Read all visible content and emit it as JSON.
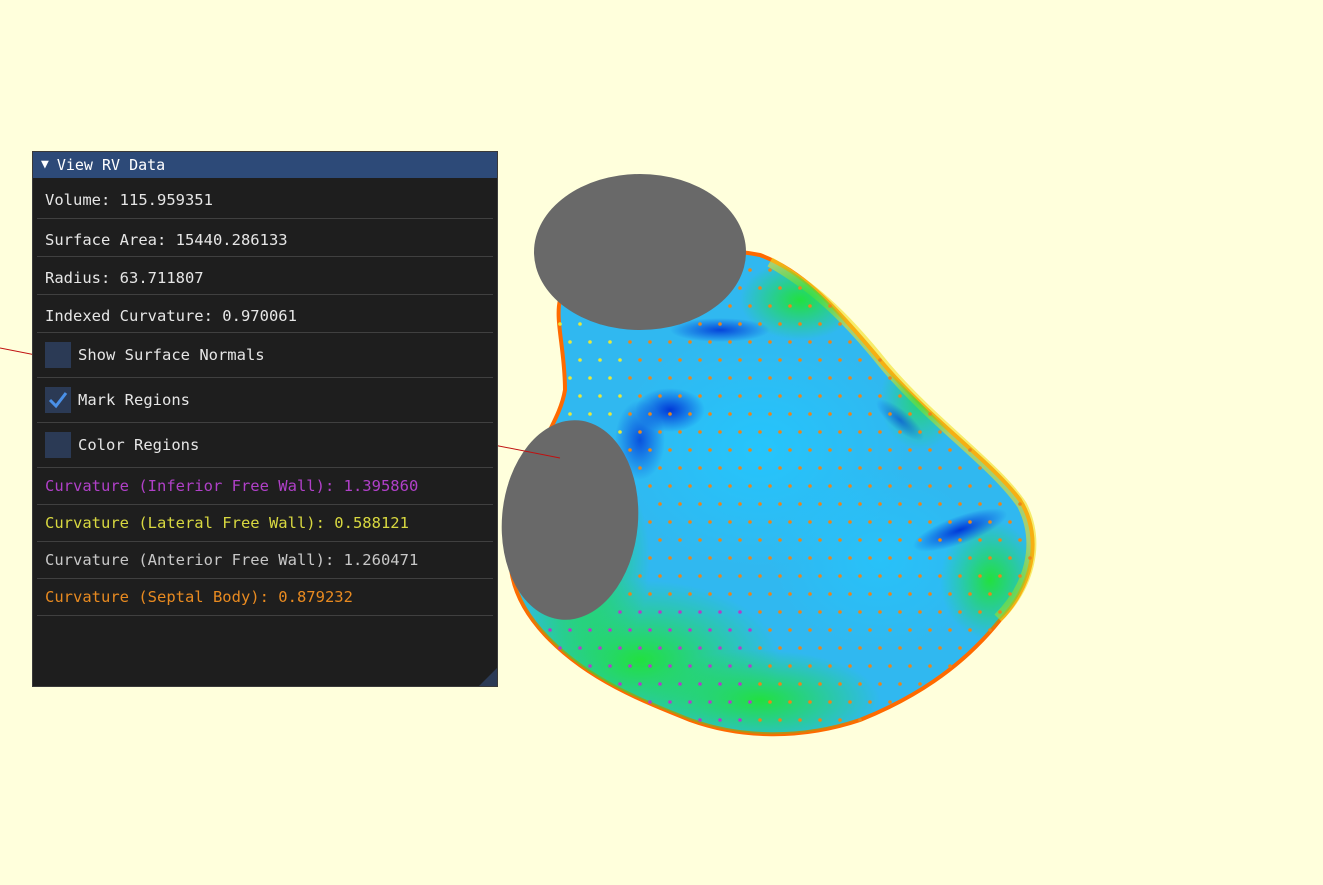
{
  "window": {
    "title": "View RV Data",
    "collapse_icon": "triangle-down-icon"
  },
  "stats": {
    "volume": "Volume: 115.959351",
    "surface_area": "Surface Area: 15440.286133",
    "radius": "Radius: 63.711807",
    "indexed_curvature": "Indexed Curvature: 0.970061"
  },
  "options": [
    {
      "label": "Show Surface Normals",
      "checked": false
    },
    {
      "label": "Mark Regions",
      "checked": true
    },
    {
      "label": "Color Regions",
      "checked": false
    }
  ],
  "regions": [
    {
      "text": "Curvature (Inferior Free Wall): 1.395860",
      "color": "#b040c8"
    },
    {
      "text": "Curvature (Lateral Free Wall): 0.588121",
      "color": "#d8d840"
    },
    {
      "text": "Curvature (Anterior Free Wall): 1.260471",
      "color": "#c8c8c8"
    },
    {
      "text": "Curvature (Septal Body): 0.879232",
      "color": "#e88a20"
    }
  ],
  "colors": {
    "background": "#ffffdc",
    "panel_bg": "#1e1e1e",
    "header_bg": "#2d4a78",
    "checkbox_bg": "#2b3a55",
    "check_mark": "#4a90e8",
    "valve_gray": "#696969",
    "orange_points": "#e8861e",
    "purple_points": "#b040c8",
    "yellow_points": "#e8e83a"
  }
}
